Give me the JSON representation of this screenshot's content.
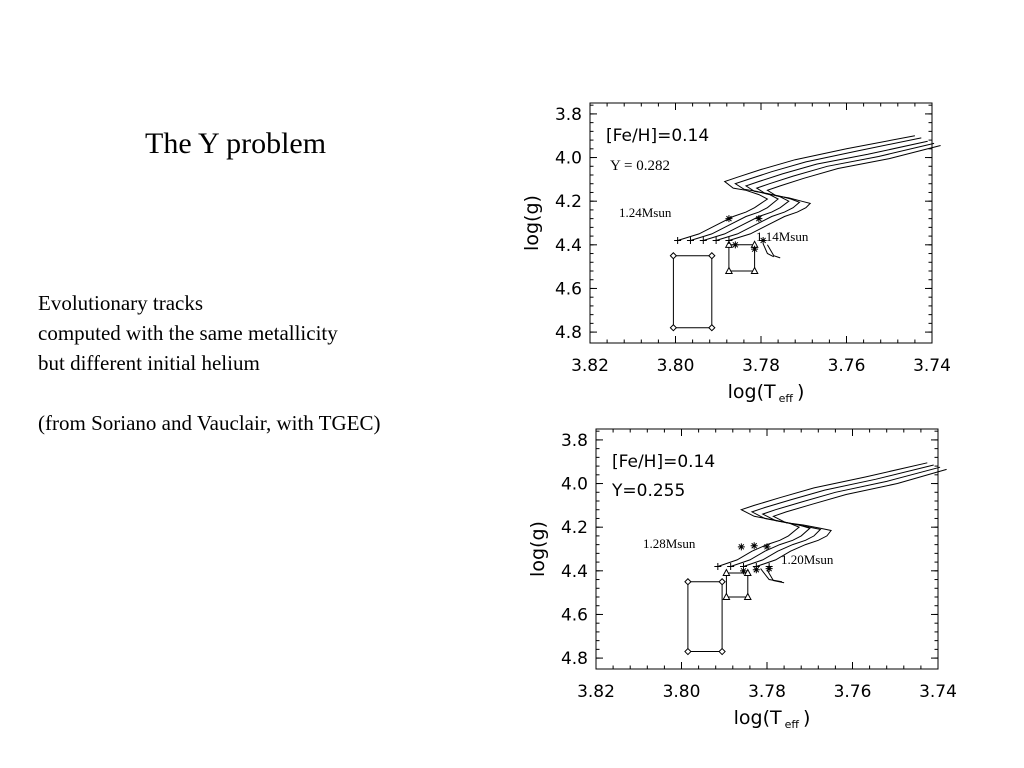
{
  "slide": {
    "title": "The Y problem",
    "desc_lines": [
      "Evolutionary tracks",
      "computed with the same metallicity",
      "but different initial helium"
    ],
    "source": "(from Soriano and Vauclair, with TGEC)"
  },
  "chart_data": [
    {
      "type": "line",
      "xlabel_main": "log(T",
      "xlabel_sub": "eff",
      "xlabel_close": ")",
      "ylabel": "log(g)",
      "xlim": [
        3.82,
        3.74
      ],
      "ylim": [
        3.75,
        4.85
      ],
      "xticks": [
        "3.82",
        "3.80",
        "3.78",
        "3.76",
        "3.74"
      ],
      "xtick_values": [
        3.82,
        3.8,
        3.78,
        3.76,
        3.74
      ],
      "yticks": [
        "3.8",
        "4.0",
        "4.2",
        "4.4",
        "4.6",
        "4.8"
      ],
      "ytick_values": [
        3.8,
        4.0,
        4.2,
        4.4,
        4.6,
        4.8
      ],
      "annotations": {
        "feh": "[Fe/H]=0.14",
        "helium": "Y = 0.282",
        "mass_high": "1.24Msun",
        "mass_low": "1.14Msun"
      },
      "series": [
        {
          "x": [
            3.7995,
            3.7945,
            3.7905,
            3.7865,
            3.7835,
            3.7815,
            3.7785,
            3.7805,
            3.7835,
            3.7865,
            3.7885,
            3.7855,
            3.78,
            3.772,
            3.76,
            3.744
          ],
          "y": [
            4.38,
            4.35,
            4.31,
            4.27,
            4.25,
            4.23,
            4.19,
            4.17,
            4.15,
            4.14,
            4.11,
            4.09,
            4.055,
            4.01,
            3.96,
            3.9
          ]
        },
        {
          "x": [
            3.7965,
            3.7915,
            3.7875,
            3.7835,
            3.7805,
            3.7785,
            3.776,
            3.778,
            3.781,
            3.784,
            3.786,
            3.783,
            3.7775,
            3.7695,
            3.7575,
            3.7425
          ],
          "y": [
            4.38,
            4.35,
            4.31,
            4.27,
            4.25,
            4.23,
            4.19,
            4.17,
            4.155,
            4.145,
            4.12,
            4.1,
            4.065,
            4.02,
            3.97,
            3.91
          ]
        },
        {
          "x": [
            3.7935,
            3.7885,
            3.7845,
            3.7805,
            3.7775,
            3.7755,
            3.7735,
            3.7755,
            3.7785,
            3.7815,
            3.7835,
            3.7805,
            3.775,
            3.767,
            3.755,
            3.741
          ],
          "y": [
            4.38,
            4.35,
            4.31,
            4.27,
            4.25,
            4.23,
            4.2,
            4.18,
            4.165,
            4.155,
            4.13,
            4.11,
            4.075,
            4.03,
            3.985,
            3.925
          ]
        },
        {
          "x": [
            3.7905,
            3.7855,
            3.7815,
            3.7775,
            3.7745,
            3.7725,
            3.771,
            3.773,
            3.776,
            3.779,
            3.781,
            3.778,
            3.7725,
            3.7645,
            3.7525,
            3.7395
          ],
          "y": [
            4.38,
            4.35,
            4.31,
            4.27,
            4.25,
            4.23,
            4.205,
            4.19,
            4.175,
            4.165,
            4.14,
            4.12,
            4.085,
            4.04,
            3.995,
            3.935
          ]
        },
        {
          "x": [
            3.7875,
            3.7825,
            3.7785,
            3.7745,
            3.7715,
            3.7695,
            3.7685,
            3.7705,
            3.7735,
            3.7765,
            3.7785,
            3.7755,
            3.77,
            3.762,
            3.75,
            3.738
          ],
          "y": [
            4.38,
            4.35,
            4.31,
            4.27,
            4.25,
            4.23,
            4.21,
            4.2,
            4.185,
            4.175,
            4.15,
            4.13,
            4.095,
            4.05,
            4.005,
            3.945
          ]
        }
      ],
      "tail_series": [
        {
          "x": [
            3.7795,
            3.7785,
            3.777
          ],
          "y": [
            4.395,
            4.44,
            4.455
          ]
        },
        {
          "x": [
            3.7785,
            3.777,
            3.7755
          ],
          "y": [
            4.4,
            4.45,
            4.46
          ]
        }
      ],
      "plus_marks": {
        "x": [
          3.7995,
          3.7965,
          3.7935,
          3.7905,
          3.7875
        ],
        "y": [
          4.38,
          4.38,
          4.38,
          4.38,
          4.38
        ]
      },
      "star_marks": {
        "x": [
          3.7875,
          3.786,
          3.7805,
          3.7815,
          3.7795
        ],
        "y": [
          4.28,
          4.4,
          4.28,
          4.42,
          4.38
        ]
      },
      "diamond_box": {
        "x": [
          3.8005,
          3.7915,
          3.7915,
          3.8005
        ],
        "y": [
          4.45,
          4.45,
          4.78,
          4.78
        ]
      },
      "triangle_box": {
        "x": [
          3.7875,
          3.7815,
          3.7815,
          3.7875
        ],
        "y": [
          4.4,
          4.4,
          4.52,
          4.52
        ]
      }
    },
    {
      "type": "line",
      "xlabel_main": "log(T",
      "xlabel_sub": "eff",
      "xlabel_close": ")",
      "ylabel": "log(g)",
      "xlim": [
        3.82,
        3.74
      ],
      "ylim": [
        3.75,
        4.85
      ],
      "xticks": [
        "3.82",
        "3.80",
        "3.78",
        "3.76",
        "3.74"
      ],
      "xtick_values": [
        3.82,
        3.8,
        3.78,
        3.76,
        3.74
      ],
      "yticks": [
        "3.8",
        "4.0",
        "4.2",
        "4.4",
        "4.6",
        "4.8"
      ],
      "ytick_values": [
        3.8,
        4.0,
        4.2,
        4.4,
        4.6,
        4.8
      ],
      "annotations": {
        "feh": "[Fe/H]=0.14",
        "helium": "Y=0.255",
        "mass_high": "1.28Msun",
        "mass_low": "1.20Msun"
      },
      "series": [
        {
          "x": [
            3.7915,
            3.787,
            3.7835,
            3.78,
            3.777,
            3.775,
            3.7725,
            3.775,
            3.779,
            3.783,
            3.786,
            3.783,
            3.777,
            3.769,
            3.757,
            3.7425
          ],
          "y": [
            4.38,
            4.35,
            4.31,
            4.28,
            4.26,
            4.24,
            4.2,
            4.18,
            4.165,
            4.15,
            4.12,
            4.1,
            4.065,
            4.02,
            3.97,
            3.905
          ]
        },
        {
          "x": [
            3.7885,
            3.784,
            3.7805,
            3.777,
            3.774,
            3.772,
            3.77,
            3.7725,
            3.7765,
            3.7805,
            3.7835,
            3.7805,
            3.7745,
            3.7665,
            3.7545,
            3.741
          ],
          "y": [
            4.38,
            4.35,
            4.31,
            4.28,
            4.26,
            4.24,
            4.205,
            4.19,
            4.175,
            4.16,
            4.13,
            4.11,
            4.075,
            4.03,
            3.98,
            3.915
          ]
        },
        {
          "x": [
            3.7855,
            3.781,
            3.7775,
            3.774,
            3.771,
            3.769,
            3.7675,
            3.77,
            3.774,
            3.778,
            3.781,
            3.778,
            3.772,
            3.764,
            3.752,
            3.7395
          ],
          "y": [
            4.38,
            4.35,
            4.31,
            4.28,
            4.26,
            4.24,
            4.21,
            4.2,
            4.185,
            4.17,
            4.14,
            4.12,
            4.085,
            4.04,
            3.99,
            3.925
          ]
        },
        {
          "x": [
            3.7825,
            3.778,
            3.7745,
            3.771,
            3.768,
            3.766,
            3.765,
            3.7675,
            3.7715,
            3.7755,
            3.7785,
            3.7755,
            3.7695,
            3.7615,
            3.7495,
            3.738
          ],
          "y": [
            4.38,
            4.35,
            4.31,
            4.28,
            4.26,
            4.24,
            4.215,
            4.205,
            4.19,
            4.18,
            4.15,
            4.13,
            4.095,
            4.05,
            4.0,
            3.935
          ]
        }
      ],
      "tail_series": [
        {
          "x": [
            3.7815,
            3.7795,
            3.7765
          ],
          "y": [
            4.39,
            4.44,
            4.45
          ]
        },
        {
          "x": [
            3.78,
            3.7785,
            3.776
          ],
          "y": [
            4.395,
            4.445,
            4.455
          ]
        }
      ],
      "plus_marks": {
        "x": [
          3.7915,
          3.7885,
          3.7855,
          3.7825,
          3.7795
        ],
        "y": [
          4.38,
          4.38,
          4.38,
          4.38,
          4.38
        ]
      },
      "star_marks": {
        "x": [
          3.786,
          3.783,
          3.78,
          3.7855,
          3.7825,
          3.7795
        ],
        "y": [
          4.29,
          4.285,
          4.29,
          4.4,
          4.395,
          4.39
        ]
      },
      "diamond_box": {
        "x": [
          3.7985,
          3.7905,
          3.7905,
          3.7985
        ],
        "y": [
          4.45,
          4.45,
          4.77,
          4.77
        ]
      },
      "triangle_box": {
        "x": [
          3.7895,
          3.7845,
          3.7845,
          3.7895
        ],
        "y": [
          4.41,
          4.41,
          4.52,
          4.52
        ]
      }
    }
  ]
}
